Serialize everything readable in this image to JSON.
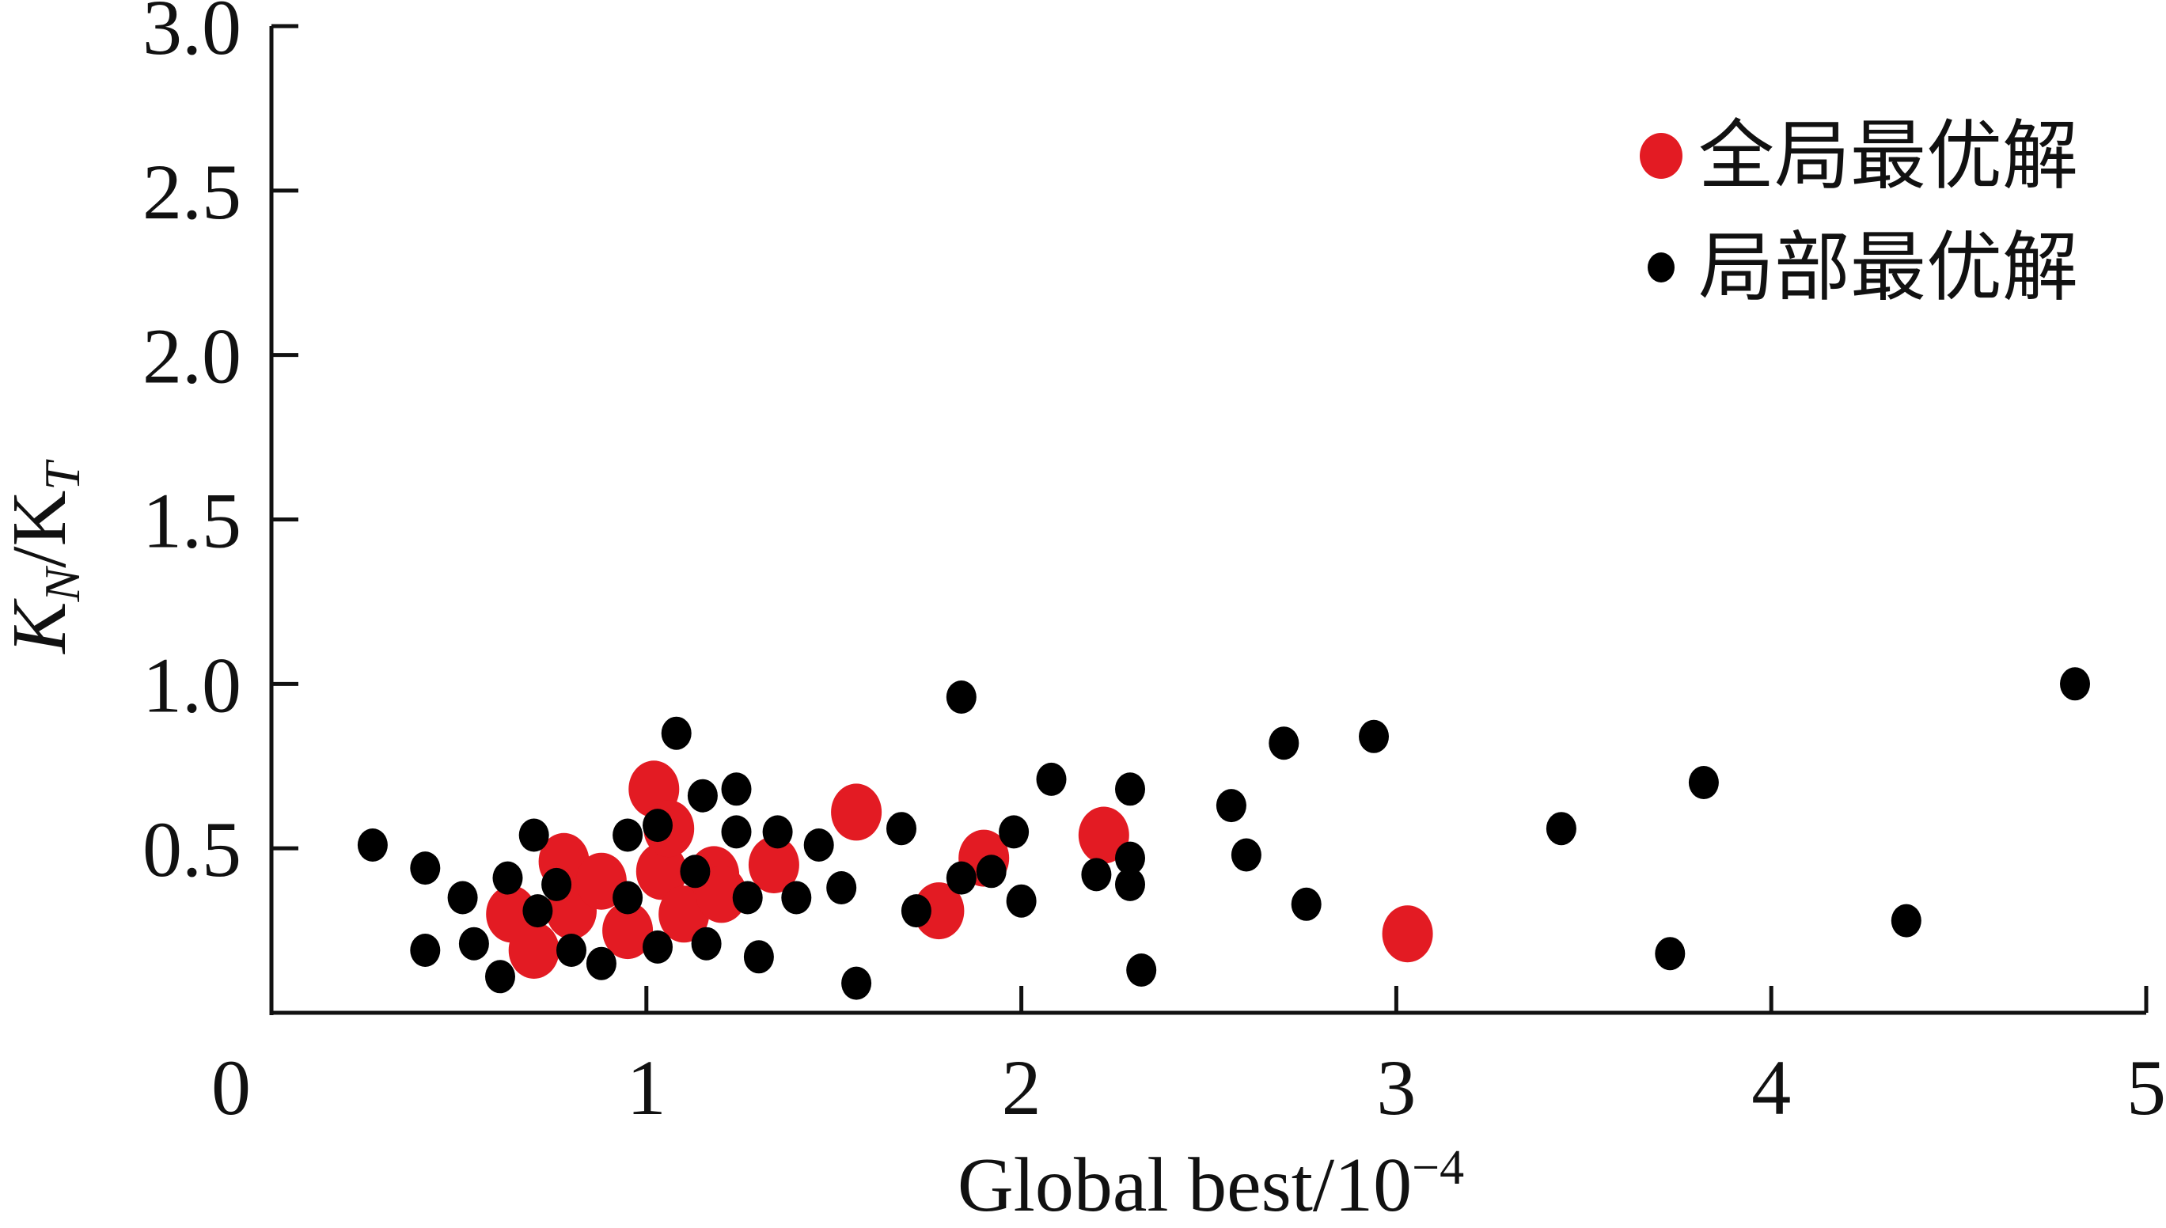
{
  "chart_data": {
    "type": "scatter",
    "xlabel": "Global best/10",
    "xlabel_sup": "−4",
    "ylabel_main": "K",
    "ylabel_sub1": "N",
    "ylabel_mid": "/K",
    "ylabel_sub2": "T",
    "xlim": [
      0,
      5
    ],
    "ylim": [
      0,
      3.0
    ],
    "x_ticks": [
      0,
      1,
      2,
      3,
      4,
      5
    ],
    "x_tick_labels": [
      "0",
      "1",
      "2",
      "3",
      "4",
      "5"
    ],
    "y_ticks": [
      0.5,
      1.0,
      1.5,
      2.0,
      2.5,
      3.0
    ],
    "y_tick_labels": [
      "0.5",
      "1.0",
      "1.5",
      "2.0",
      "2.5",
      "3.0"
    ],
    "grid": false,
    "legend_position": "top-right",
    "series": [
      {
        "name": "全局最优解",
        "color": "#e31b23",
        "marker": "large-ellipse",
        "points": [
          [
            0.64,
            0.3
          ],
          [
            0.7,
            0.19
          ],
          [
            0.78,
            0.46
          ],
          [
            0.8,
            0.31
          ],
          [
            0.88,
            0.4
          ],
          [
            0.95,
            0.25
          ],
          [
            1.02,
            0.68
          ],
          [
            1.04,
            0.43
          ],
          [
            1.06,
            0.56
          ],
          [
            1.1,
            0.3
          ],
          [
            1.18,
            0.42
          ],
          [
            1.2,
            0.36
          ],
          [
            1.34,
            0.45
          ],
          [
            1.56,
            0.61
          ],
          [
            1.78,
            0.31
          ],
          [
            1.9,
            0.47
          ],
          [
            2.22,
            0.54
          ],
          [
            3.03,
            0.24
          ]
        ]
      },
      {
        "name": "局部最优解",
        "color": "#000000",
        "marker": "small-ellipse",
        "points": [
          [
            0.27,
            0.51
          ],
          [
            0.41,
            0.44
          ],
          [
            0.41,
            0.19
          ],
          [
            0.51,
            0.35
          ],
          [
            0.54,
            0.21
          ],
          [
            0.61,
            0.11
          ],
          [
            0.63,
            0.41
          ],
          [
            0.7,
            0.54
          ],
          [
            0.71,
            0.31
          ],
          [
            0.76,
            0.39
          ],
          [
            0.8,
            0.19
          ],
          [
            0.88,
            0.15
          ],
          [
            0.95,
            0.54
          ],
          [
            0.95,
            0.35
          ],
          [
            1.03,
            0.57
          ],
          [
            1.03,
            0.2
          ],
          [
            1.08,
            0.85
          ],
          [
            1.13,
            0.43
          ],
          [
            1.15,
            0.66
          ],
          [
            1.16,
            0.21
          ],
          [
            1.24,
            0.68
          ],
          [
            1.24,
            0.55
          ],
          [
            1.27,
            0.35
          ],
          [
            1.3,
            0.17
          ],
          [
            1.35,
            0.55
          ],
          [
            1.4,
            0.35
          ],
          [
            1.46,
            0.51
          ],
          [
            1.52,
            0.38
          ],
          [
            1.56,
            0.09
          ],
          [
            1.68,
            0.56
          ],
          [
            1.72,
            0.31
          ],
          [
            1.84,
            0.96
          ],
          [
            1.84,
            0.41
          ],
          [
            1.92,
            0.43
          ],
          [
            1.98,
            0.55
          ],
          [
            2.0,
            0.34
          ],
          [
            2.08,
            0.71
          ],
          [
            2.2,
            0.42
          ],
          [
            2.29,
            0.68
          ],
          [
            2.29,
            0.47
          ],
          [
            2.29,
            0.39
          ],
          [
            2.32,
            0.13
          ],
          [
            2.56,
            0.63
          ],
          [
            2.6,
            0.48
          ],
          [
            2.7,
            0.82
          ],
          [
            2.76,
            0.33
          ],
          [
            2.94,
            0.84
          ],
          [
            3.44,
            0.56
          ],
          [
            3.73,
            0.18
          ],
          [
            3.82,
            0.7
          ],
          [
            4.36,
            0.28
          ],
          [
            4.81,
            1.0
          ]
        ]
      }
    ]
  }
}
